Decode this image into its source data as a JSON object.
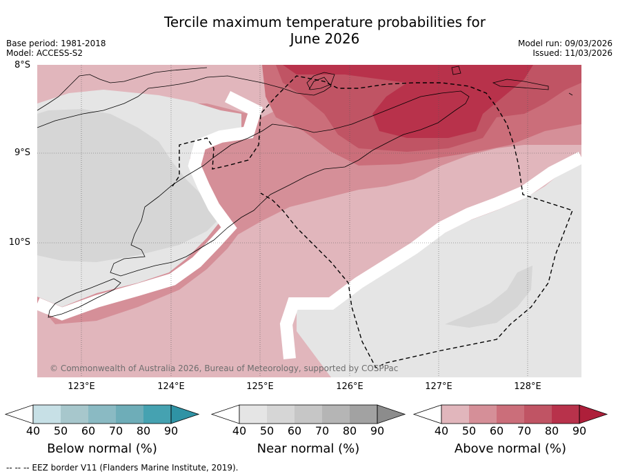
{
  "header": {
    "title_line1": "Tercile maximum temperature probabilities for",
    "title_line2": "June 2026",
    "base_period": "Base period: 1981-2018",
    "model": "Model: ACCESS-S2",
    "model_run": "Model run: 09/03/2026",
    "issued": "Issued: 11/03/2026"
  },
  "map": {
    "lat_labels": [
      "8°S",
      "9°S",
      "10°S"
    ],
    "lon_labels": [
      "123°E",
      "124°E",
      "125°E",
      "126°E",
      "127°E",
      "128°E"
    ],
    "copyright": "© Commonwealth of Australia 2026, Bureau of Meteorology, supported by COSPPac"
  },
  "colorbars": [
    {
      "name": "below",
      "label": "Below normal (%)",
      "ticks": [
        "40",
        "50",
        "60",
        "70",
        "80",
        "90"
      ],
      "colors": [
        "#ffffff",
        "#c7e0e6",
        "#a7c7cc",
        "#8abac3",
        "#6eadb8",
        "#45a2b1",
        "#2f93a5"
      ]
    },
    {
      "name": "near",
      "label": "Near normal (%)",
      "ticks": [
        "40",
        "50",
        "60",
        "70",
        "80",
        "90"
      ],
      "colors": [
        "#ffffff",
        "#e5e5e5",
        "#d6d6d6",
        "#c6c6c6",
        "#b5b5b5",
        "#a2a2a2",
        "#8c8c8c"
      ]
    },
    {
      "name": "above",
      "label": "Above normal (%)",
      "ticks": [
        "40",
        "50",
        "60",
        "70",
        "80",
        "90"
      ],
      "colors": [
        "#ffffff",
        "#e1b6bc",
        "#d58f98",
        "#cb6e7a",
        "#c05464",
        "#b8324b",
        "#ae1f3a"
      ]
    }
  ],
  "footnote": "--  --  -- EEZ border V11 (Flanders Marine Institute, 2019)."
}
